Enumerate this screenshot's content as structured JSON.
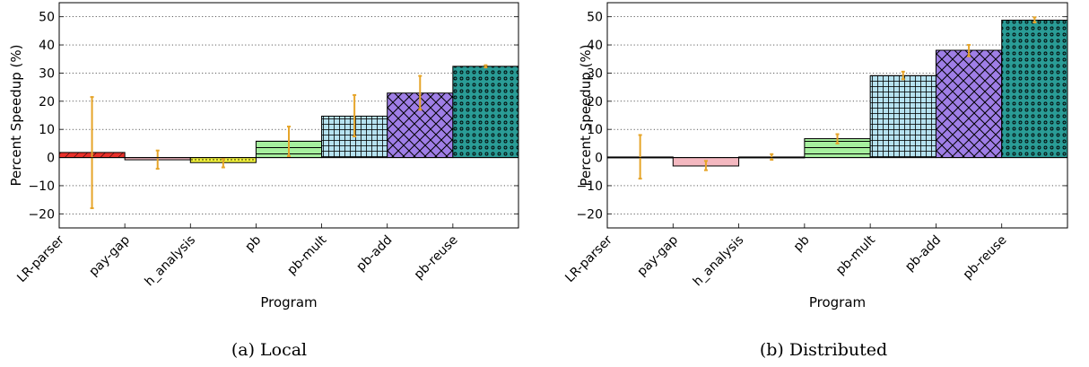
{
  "figure": {
    "captions": [
      "(a) Local",
      "(b) Distributed"
    ]
  },
  "chart_data": [
    {
      "type": "bar",
      "xlabel": "Program",
      "ylabel": "Percent Speedup (%)",
      "ylim": [
        -25,
        55
      ],
      "yticks": [
        -20,
        -10,
        0,
        10,
        20,
        30,
        40,
        50
      ],
      "ytick_labels": [
        "−20",
        "−10",
        "0",
        "10",
        "20",
        "30",
        "40",
        "50"
      ],
      "grid": "horizontal dotted",
      "categories": [
        "LR-parser",
        "pay-gap",
        "h_analysis",
        "pb",
        "pb-mult",
        "pb-add",
        "pb-reuse"
      ],
      "values": [
        1.8,
        -0.8,
        -1.8,
        5.8,
        14.7,
        22.9,
        32.4
      ],
      "error_low": [
        -18.0,
        -4.0,
        -3.5,
        0.5,
        7.5,
        17.0,
        32.0
      ],
      "error_high": [
        21.5,
        2.5,
        -0.5,
        11.0,
        22.2,
        29.0,
        32.8
      ],
      "bar_colors": [
        "#e8302a",
        "#f4b8c0",
        "#f2f23a",
        "#a6ef9e",
        "#b6e2f0",
        "#9f7ee6",
        "#2a9c96"
      ],
      "bar_patterns": [
        "diagonal",
        "none",
        "dots-small",
        "horizontal",
        "grid",
        "crosshatch",
        "circles"
      ],
      "error_color": "#e6a52a"
    },
    {
      "type": "bar",
      "xlabel": "Program",
      "ylabel": "Percent Speedup (%)",
      "ylim": [
        -25,
        55
      ],
      "yticks": [
        -20,
        -10,
        0,
        10,
        20,
        30,
        40,
        50
      ],
      "ytick_labels": [
        "−20",
        "−10",
        "0",
        "10",
        "20",
        "30",
        "40",
        "50"
      ],
      "grid": "horizontal dotted",
      "categories": [
        "LR-parser",
        "pay-gap",
        "h_analysis",
        "pb",
        "pb-mult",
        "pb-add",
        "pb-reuse"
      ],
      "values": [
        0.2,
        -3.0,
        0.2,
        6.7,
        29.1,
        38.1,
        48.8
      ],
      "error_low": [
        -7.5,
        -4.5,
        -0.8,
        5.0,
        27.8,
        36.0,
        48.0
      ],
      "error_high": [
        8.0,
        -1.2,
        1.2,
        8.3,
        30.5,
        40.0,
        49.8
      ],
      "bar_colors": [
        "#e8302a",
        "#f4b8c0",
        "#f2f23a",
        "#a6ef9e",
        "#b6e2f0",
        "#9f7ee6",
        "#2a9c96"
      ],
      "bar_patterns": [
        "diagonal",
        "none",
        "dots-small",
        "horizontal",
        "grid",
        "crosshatch",
        "circles"
      ],
      "error_color": "#e6a52a"
    }
  ]
}
